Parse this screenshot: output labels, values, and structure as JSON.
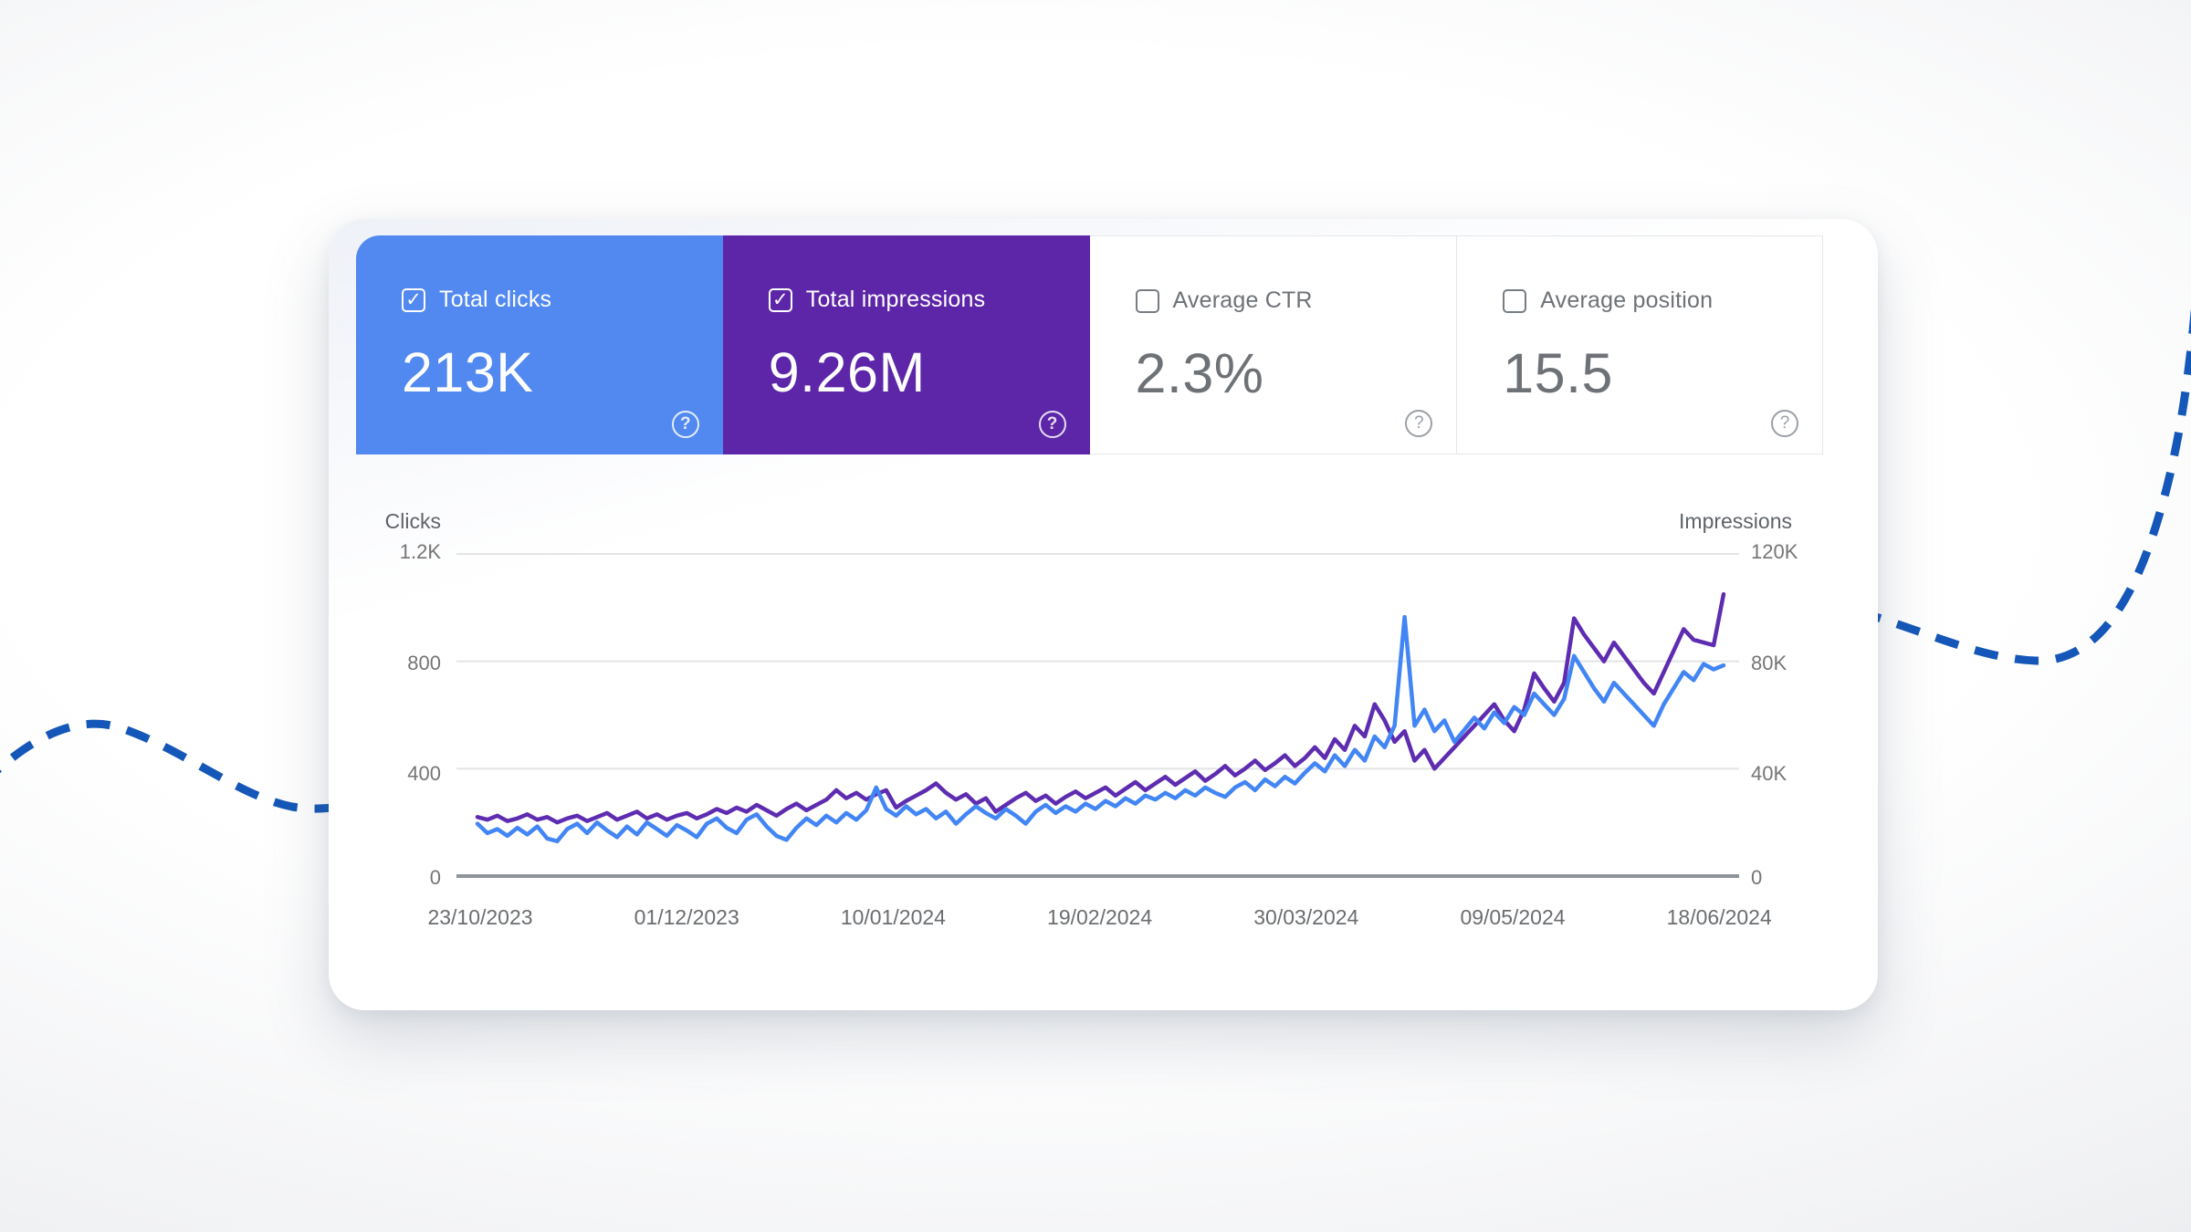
{
  "page": {
    "wave_color": "#1457b8",
    "background_center": "#ffffff",
    "background_edge": "#e0e2e5",
    "card_background": "#ffffff"
  },
  "icons": {
    "check": "✓",
    "help": "?"
  },
  "metrics": {
    "cards": [
      {
        "id": "total-clicks",
        "label": "Total clicks",
        "value": "213K",
        "checked": true,
        "bg": "#5289f0",
        "text": "#ffffff"
      },
      {
        "id": "total-impressions",
        "label": "Total impressions",
        "value": "9.26M",
        "checked": true,
        "bg": "#5d26a8",
        "text": "#ffffff"
      },
      {
        "id": "average-ctr",
        "label": "Average CTR",
        "value": "2.3%",
        "checked": false,
        "bg": "#ffffff",
        "text": "#6e7276"
      },
      {
        "id": "average-position",
        "label": "Average position",
        "value": "15.5",
        "checked": false,
        "bg": "#ffffff",
        "text": "#6e7276"
      }
    ]
  },
  "chart_data": {
    "type": "line",
    "grid": true,
    "legend_position": "none",
    "left_axis": {
      "title": "Clicks",
      "ticks": [
        "1.2K",
        "800",
        "400",
        "0"
      ],
      "min": 0,
      "max": 1200
    },
    "right_axis": {
      "title": "Impressions",
      "ticks": [
        "120K",
        "80K",
        "40K",
        "0"
      ],
      "min": 0,
      "max": 120000
    },
    "x_ticks": [
      "23/10/2023",
      "01/12/2023",
      "10/01/2024",
      "19/02/2024",
      "30/03/2024",
      "09/05/2024",
      "18/06/2024"
    ],
    "series": [
      {
        "name": "Impressions",
        "axis": "right",
        "color": "#5e2cb0",
        "values": [
          22000,
          21000,
          22500,
          20500,
          21500,
          23000,
          21000,
          22000,
          20000,
          21500,
          22500,
          20500,
          22000,
          23500,
          21000,
          22500,
          24000,
          21500,
          23000,
          21000,
          22500,
          23500,
          21500,
          23000,
          25000,
          23500,
          25500,
          24000,
          26500,
          24500,
          22500,
          25000,
          27000,
          24500,
          26500,
          28500,
          32000,
          29000,
          31000,
          28500,
          30500,
          32000,
          25500,
          28000,
          30000,
          32000,
          34500,
          31000,
          28500,
          30500,
          27000,
          29000,
          24000,
          26500,
          29000,
          31000,
          28000,
          30000,
          27000,
          29500,
          31500,
          29000,
          31000,
          33000,
          30000,
          32500,
          35000,
          32000,
          34500,
          37000,
          34000,
          36500,
          39000,
          35500,
          38000,
          41000,
          37500,
          40000,
          43000,
          39500,
          42000,
          45000,
          41000,
          44000,
          48000,
          44000,
          51000,
          47000,
          56000,
          52000,
          64000,
          58000,
          50000,
          54000,
          43000,
          47000,
          40000,
          44000,
          48000,
          52000,
          56000,
          60000,
          64000,
          58000,
          54000,
          62000,
          75500,
          70000,
          65000,
          72000,
          96000,
          90000,
          85000,
          80000,
          87000,
          82000,
          77000,
          72000,
          68000,
          76000,
          84000,
          92000,
          88000,
          87000,
          86000,
          105000
        ]
      },
      {
        "name": "Clicks",
        "axis": "left",
        "color": "#4285f4",
        "values": [
          195,
          160,
          175,
          150,
          180,
          155,
          185,
          140,
          130,
          175,
          195,
          160,
          200,
          170,
          145,
          185,
          155,
          200,
          175,
          150,
          190,
          170,
          145,
          195,
          215,
          180,
          160,
          210,
          230,
          185,
          150,
          135,
          180,
          215,
          190,
          225,
          200,
          235,
          210,
          245,
          330,
          250,
          225,
          260,
          230,
          250,
          215,
          240,
          195,
          230,
          260,
          235,
          215,
          250,
          225,
          195,
          240,
          265,
          235,
          260,
          240,
          270,
          250,
          280,
          260,
          290,
          270,
          300,
          285,
          310,
          290,
          320,
          300,
          330,
          310,
          295,
          330,
          350,
          320,
          360,
          335,
          370,
          345,
          385,
          420,
          390,
          450,
          410,
          470,
          430,
          520,
          480,
          560,
          965,
          560,
          620,
          540,
          580,
          500,
          545,
          590,
          550,
          610,
          570,
          630,
          600,
          680,
          640,
          600,
          660,
          820,
          760,
          700,
          650,
          720,
          680,
          640,
          600,
          560,
          640,
          700,
          760,
          730,
          790,
          770,
          785
        ]
      }
    ]
  }
}
